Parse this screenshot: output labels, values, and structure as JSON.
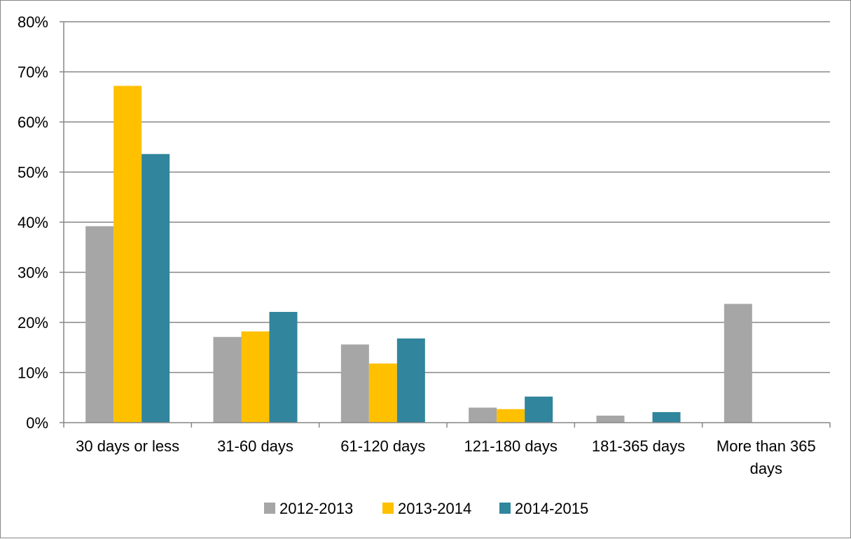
{
  "chart_data": {
    "type": "bar",
    "categories": [
      "30 days or less",
      "31-60 days",
      "61-120 days",
      "121-180 days",
      "181-365 days",
      "More than 365 days"
    ],
    "category_lines": [
      [
        "30 days or less"
      ],
      [
        "31-60 days"
      ],
      [
        "61-120 days"
      ],
      [
        "121-180 days"
      ],
      [
        "181-365 days"
      ],
      [
        "More than 365",
        "days"
      ]
    ],
    "series": [
      {
        "name": "2012-2013",
        "color": "#A6A6A6",
        "values": [
          39.2,
          17.1,
          15.6,
          3.0,
          1.4,
          23.7
        ]
      },
      {
        "name": "2013-2014",
        "color": "#FFC000",
        "values": [
          67.2,
          18.2,
          11.8,
          2.7,
          0,
          0
        ]
      },
      {
        "name": "2014-2015",
        "color": "#31859C",
        "values": [
          53.6,
          22.1,
          16.8,
          5.2,
          2.1,
          0
        ]
      }
    ],
    "title": "",
    "xlabel": "",
    "ylabel": "",
    "ylim": [
      0,
      80
    ],
    "yticks": [
      "0%",
      "10%",
      "20%",
      "30%",
      "40%",
      "50%",
      "60%",
      "70%",
      "80%"
    ],
    "grid": true,
    "legend_position": "bottom"
  }
}
